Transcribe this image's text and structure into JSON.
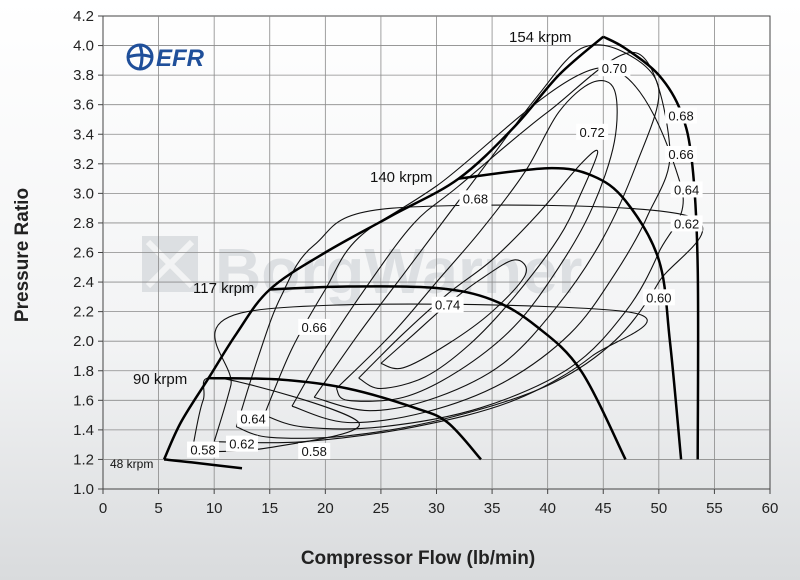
{
  "logo": {
    "text": "EFR",
    "color": "#1f4f9a"
  },
  "watermark": {
    "text": "BorgWarner",
    "color": "#dcdfe2"
  },
  "chart_data": {
    "type": "line",
    "title": "",
    "xlabel": "Compressor Flow (lb/min)",
    "ylabel": "Pressure Ratio",
    "xlim": [
      0,
      60
    ],
    "ylim": [
      1.0,
      4.2
    ],
    "xticks": [
      0,
      5,
      10,
      15,
      20,
      25,
      30,
      35,
      40,
      45,
      50,
      55,
      60
    ],
    "yticks": [
      "1.0",
      "1.2",
      "1.4",
      "1.6",
      "1.8",
      "2.0",
      "2.2",
      "2.4",
      "2.6",
      "2.8",
      "3.0",
      "3.2",
      "3.4",
      "3.6",
      "3.8",
      "4.0",
      "4.2"
    ],
    "grid": true,
    "surge_line": [
      [
        5.5,
        1.2
      ],
      [
        7,
        1.45
      ],
      [
        9.5,
        1.75
      ],
      [
        12,
        2.05
      ],
      [
        15,
        2.35
      ],
      [
        20,
        2.6
      ],
      [
        26,
        2.85
      ],
      [
        32,
        3.1
      ],
      [
        37,
        3.45
      ],
      [
        41,
        3.8
      ],
      [
        45,
        4.06
      ]
    ],
    "speed_lines": [
      {
        "label": "48 krpm",
        "points": [
          [
            5.5,
            1.2
          ],
          [
            8,
            1.18
          ],
          [
            12.5,
            1.14
          ]
        ]
      },
      {
        "label": "90 krpm",
        "points": [
          [
            9.5,
            1.75
          ],
          [
            16,
            1.74
          ],
          [
            22,
            1.68
          ],
          [
            28,
            1.55
          ],
          [
            31,
            1.45
          ],
          [
            34,
            1.2
          ]
        ]
      },
      {
        "label": "117 krpm",
        "points": [
          [
            15,
            2.35
          ],
          [
            22,
            2.37
          ],
          [
            30,
            2.36
          ],
          [
            35,
            2.28
          ],
          [
            39,
            2.1
          ],
          [
            43,
            1.8
          ],
          [
            47,
            1.2
          ]
        ]
      },
      {
        "label": "140 krpm",
        "points": [
          [
            32,
            3.1
          ],
          [
            40,
            3.17
          ],
          [
            44,
            3.12
          ],
          [
            47,
            2.95
          ],
          [
            50,
            2.55
          ],
          [
            51,
            2
          ],
          [
            52,
            1.2
          ]
        ]
      },
      {
        "label": "154 krpm",
        "points": [
          [
            45,
            4.06
          ],
          [
            47,
            3.98
          ],
          [
            50,
            3.8
          ],
          [
            52,
            3.55
          ],
          [
            53,
            3.2
          ],
          [
            53.5,
            2.5
          ],
          [
            53.5,
            1.2
          ]
        ]
      }
    ],
    "efficiency_labels": [
      {
        "label": "0.58",
        "x": 9,
        "y": 1.26
      },
      {
        "label": "0.62",
        "x": 12.5,
        "y": 1.3
      },
      {
        "label": "0.64",
        "x": 13.5,
        "y": 1.47
      },
      {
        "label": "0.58",
        "x": 19,
        "y": 1.25
      },
      {
        "label": "0.66",
        "x": 19,
        "y": 2.09
      },
      {
        "label": "0.68",
        "x": 33.5,
        "y": 2.96
      },
      {
        "label": "0.74",
        "x": 31,
        "y": 2.24
      },
      {
        "label": "0.72",
        "x": 44,
        "y": 3.41
      },
      {
        "label": "0.70",
        "x": 46,
        "y": 3.84
      },
      {
        "label": "0.68",
        "x": 52,
        "y": 3.52
      },
      {
        "label": "0.66",
        "x": 52,
        "y": 3.26
      },
      {
        "label": "0.64",
        "x": 52.5,
        "y": 3.02
      },
      {
        "label": "0.62",
        "x": 52.5,
        "y": 2.79
      },
      {
        "label": "0.60",
        "x": 50,
        "y": 2.29
      }
    ],
    "efficiency_contours": [
      {
        "label": "0.74",
        "points": [
          [
            25,
            1.85
          ],
          [
            28,
            2.05
          ],
          [
            31,
            2.25
          ],
          [
            34,
            2.42
          ],
          [
            37,
            2.55
          ],
          [
            38,
            2.45
          ],
          [
            35,
            2.2
          ],
          [
            31,
            1.98
          ],
          [
            27,
            1.82
          ],
          [
            25,
            1.85
          ]
        ]
      },
      {
        "label": "0.72",
        "points": [
          [
            23,
            1.75
          ],
          [
            27,
            2.05
          ],
          [
            31,
            2.32
          ],
          [
            35,
            2.55
          ],
          [
            39,
            2.85
          ],
          [
            43,
            3.2
          ],
          [
            44.5,
            3.28
          ],
          [
            43,
            3
          ],
          [
            41,
            2.7
          ],
          [
            37,
            2.3
          ],
          [
            33,
            1.98
          ],
          [
            29,
            1.76
          ],
          [
            25,
            1.68
          ],
          [
            23,
            1.75
          ]
        ]
      },
      {
        "label": "0.70",
        "points": [
          [
            21,
            1.68
          ],
          [
            26,
            2.05
          ],
          [
            30,
            2.4
          ],
          [
            34,
            2.75
          ],
          [
            38,
            3.15
          ],
          [
            41,
            3.55
          ],
          [
            44,
            3.75
          ],
          [
            46,
            3.7
          ],
          [
            46,
            3.35
          ],
          [
            44,
            2.9
          ],
          [
            41,
            2.5
          ],
          [
            37,
            2.1
          ],
          [
            32,
            1.8
          ],
          [
            27,
            1.62
          ],
          [
            22,
            1.6
          ],
          [
            21,
            1.68
          ]
        ]
      },
      {
        "label": "0.68",
        "points": [
          [
            19,
            1.62
          ],
          [
            23,
            2.05
          ],
          [
            27,
            2.45
          ],
          [
            31,
            2.85
          ],
          [
            35,
            3.25
          ],
          [
            39,
            3.65
          ],
          [
            43,
            3.98
          ],
          [
            47,
            3.95
          ],
          [
            50,
            3.7
          ],
          [
            48,
            3.2
          ],
          [
            45,
            2.7
          ],
          [
            41,
            2.25
          ],
          [
            36,
            1.85
          ],
          [
            30,
            1.62
          ],
          [
            24,
            1.53
          ],
          [
            19,
            1.62
          ]
        ]
      },
      {
        "label": "0.66",
        "points": [
          [
            17,
            1.56
          ],
          [
            20,
            1.95
          ],
          [
            24,
            2.4
          ],
          [
            28,
            2.8
          ],
          [
            32,
            3.05
          ],
          [
            40,
            3.55
          ],
          [
            48,
            3.95
          ],
          [
            51,
            3.3
          ],
          [
            49,
            2.85
          ],
          [
            46,
            2.45
          ],
          [
            42,
            2.05
          ],
          [
            36,
            1.72
          ],
          [
            29,
            1.52
          ],
          [
            22,
            1.45
          ],
          [
            17,
            1.56
          ]
        ]
      },
      {
        "label": "0.64",
        "points": [
          [
            14.5,
            1.5
          ],
          [
            17,
            1.95
          ],
          [
            20,
            2.35
          ],
          [
            23,
            2.7
          ],
          [
            30,
            3.05
          ],
          [
            45,
            3.85
          ],
          [
            52,
            3.05
          ],
          [
            50,
            2.6
          ],
          [
            47,
            2.2
          ],
          [
            42,
            1.82
          ],
          [
            34,
            1.55
          ],
          [
            25,
            1.42
          ],
          [
            18,
            1.42
          ],
          [
            14.5,
            1.5
          ]
        ]
      },
      {
        "label": "0.62",
        "points": [
          [
            12,
            1.42
          ],
          [
            14,
            1.9
          ],
          [
            16,
            2.3
          ],
          [
            19,
            2.65
          ],
          [
            26,
            2.9
          ],
          [
            52.5,
            2.85
          ],
          [
            50,
            2.4
          ],
          [
            46,
            2.0
          ],
          [
            40,
            1.7
          ],
          [
            31,
            1.48
          ],
          [
            22,
            1.36
          ],
          [
            15,
            1.35
          ],
          [
            12,
            1.42
          ]
        ]
      },
      {
        "label": "0.60",
        "points": [
          [
            10,
            1.32
          ],
          [
            11.5,
            1.7
          ],
          [
            13,
            2.2
          ],
          [
            47,
            2.2
          ],
          [
            44,
            1.9
          ],
          [
            37,
            1.6
          ],
          [
            28,
            1.42
          ],
          [
            18,
            1.32
          ],
          [
            10,
            1.32
          ]
        ]
      },
      {
        "label": "0.58",
        "points": [
          [
            8,
            1.25
          ],
          [
            9,
            1.6
          ],
          [
            10.5,
            1.75
          ],
          [
            23,
            1.45
          ],
          [
            15,
            1.28
          ],
          [
            8,
            1.25
          ]
        ]
      }
    ]
  }
}
